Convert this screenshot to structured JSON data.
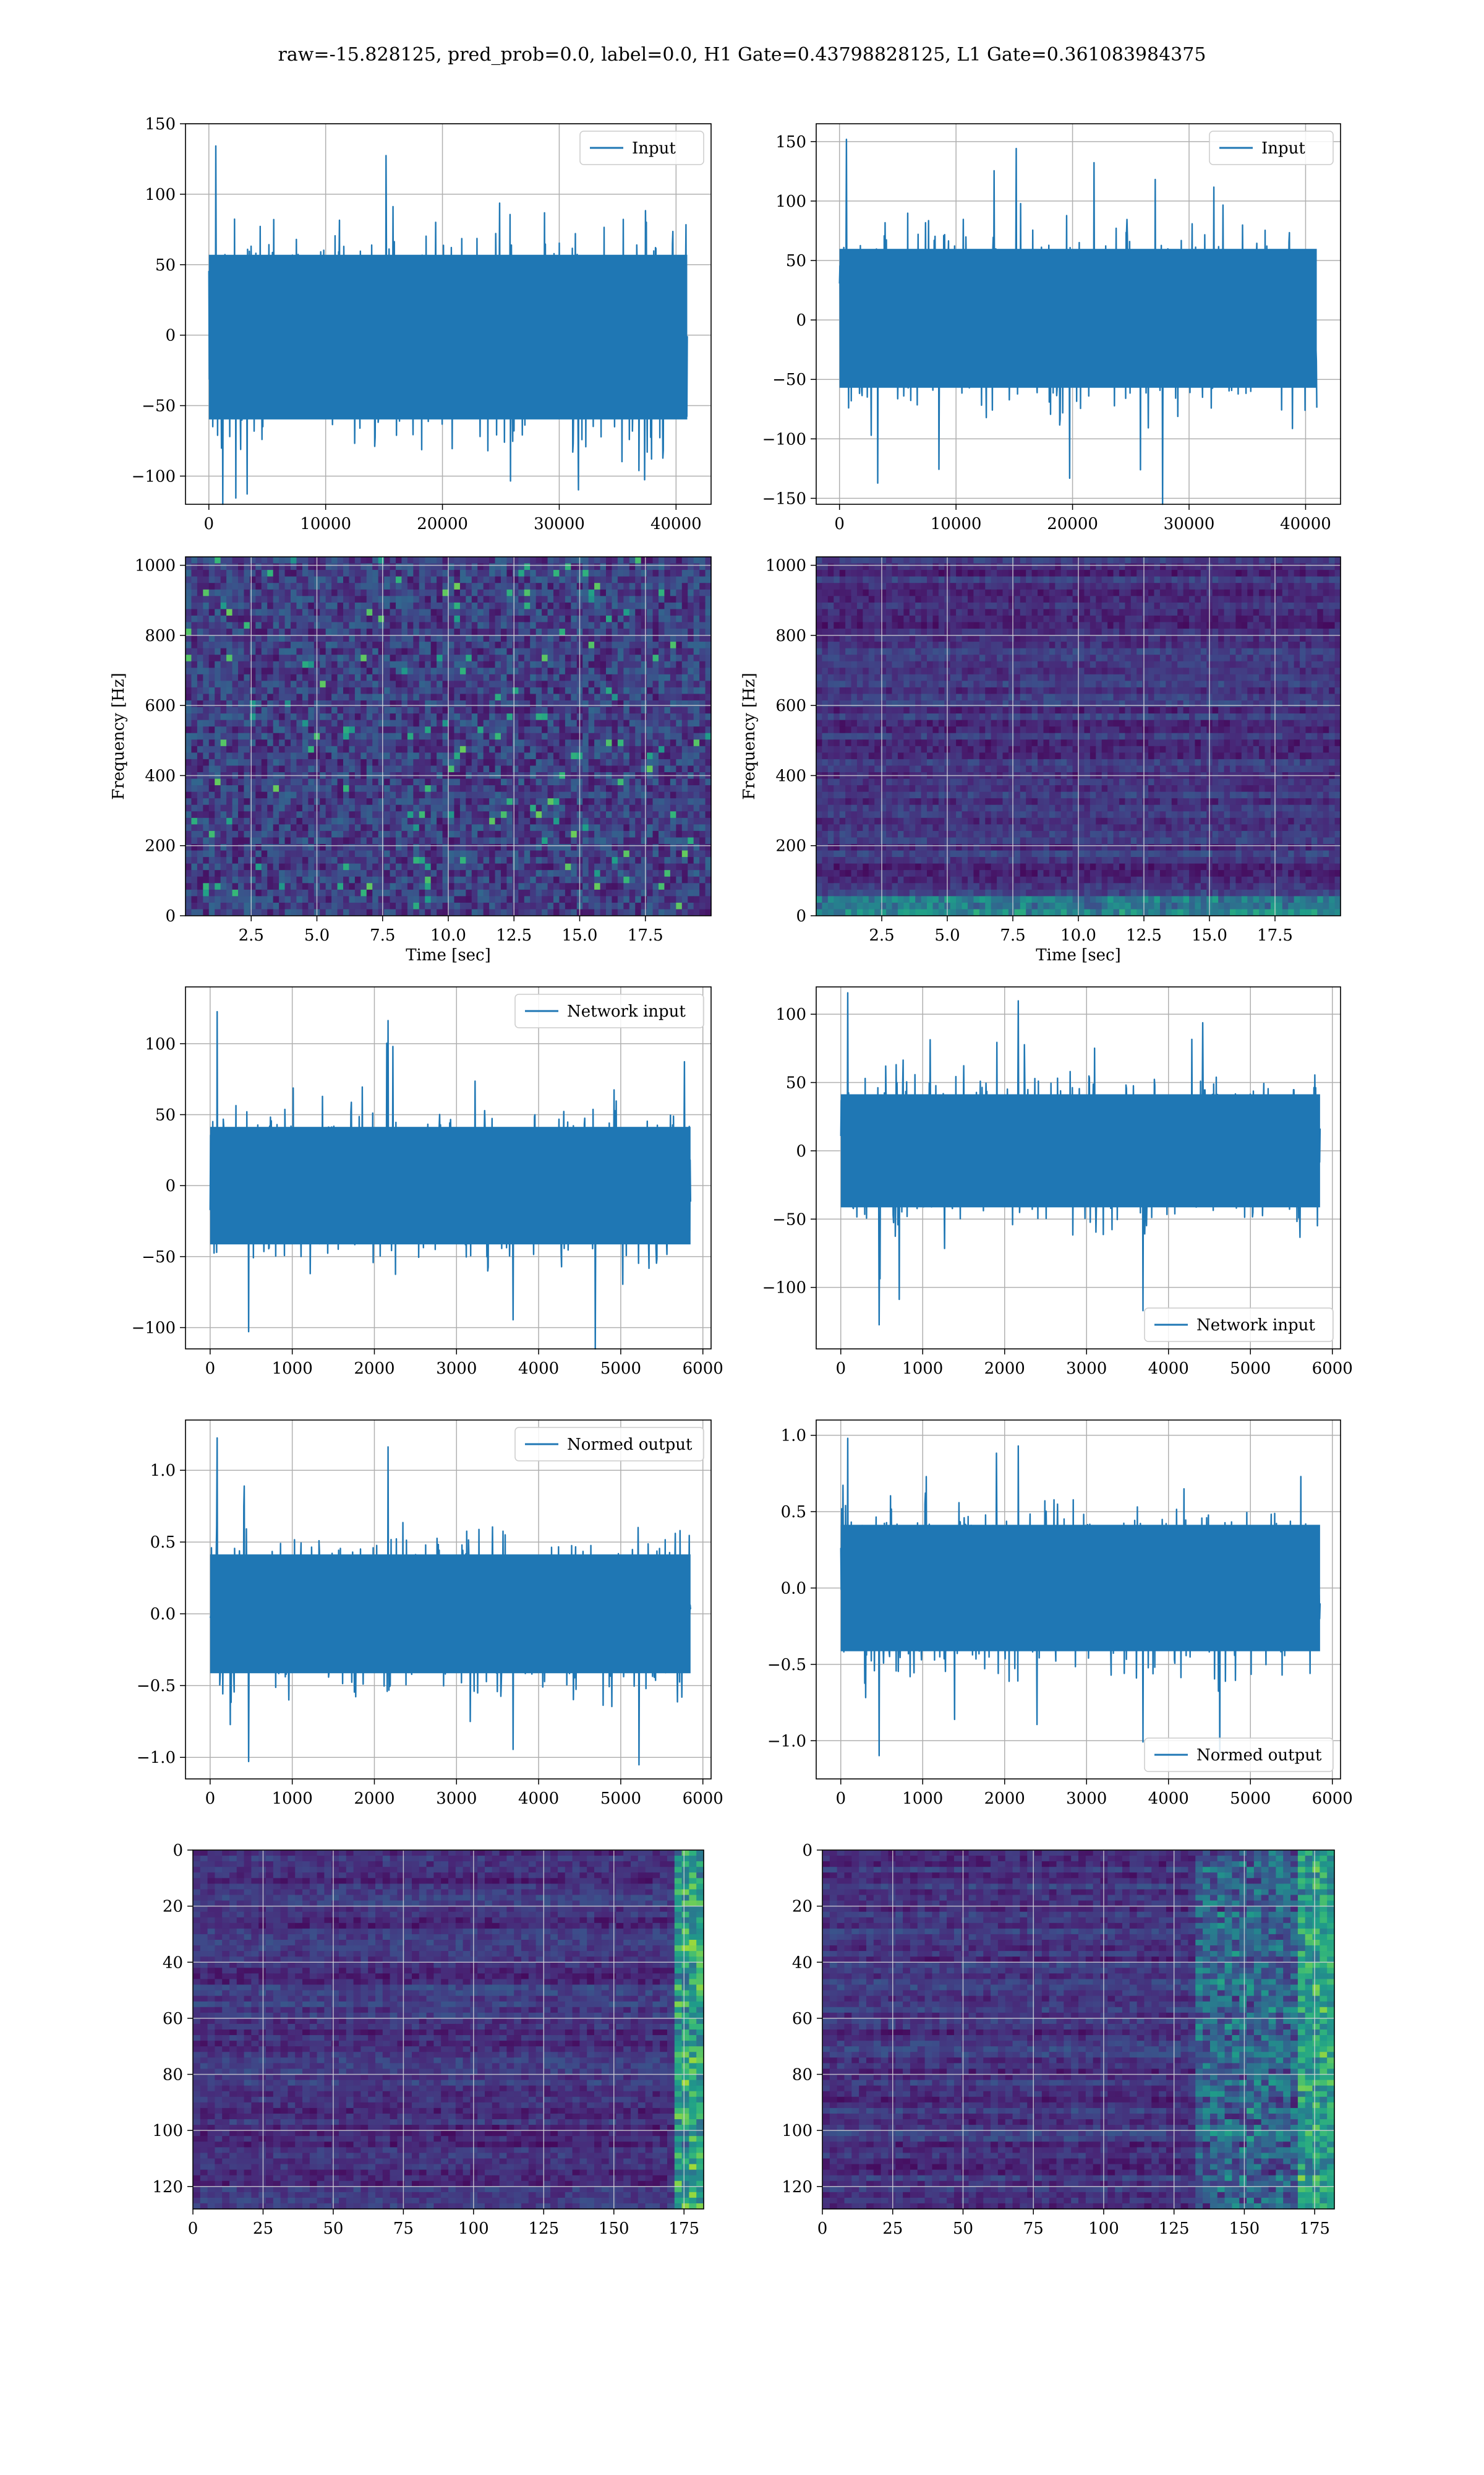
{
  "figure_title": "raw=-15.828125, pred_prob=0.0, label=0.0, H1 Gate=0.43798828125, L1 Gate=0.361083984375",
  "colors": {
    "line": "#1f77b4",
    "grid": "#b0b0b0",
    "viridis": [
      "#440154",
      "#482878",
      "#3e4989",
      "#31688e",
      "#26828e",
      "#1f9e89",
      "#35b779",
      "#6ece58",
      "#b5de2b",
      "#fde725"
    ]
  },
  "chart_data": [
    {
      "id": "row1-left",
      "type": "line",
      "title": "",
      "xlabel": "",
      "ylabel": "",
      "legend": "upper right",
      "grid": true,
      "xlim": [
        -2000,
        43000
      ],
      "ylim": [
        -120,
        150
      ],
      "xticks": [
        0,
        10000,
        20000,
        30000,
        40000
      ],
      "xticklabels": [
        "0",
        "10000",
        "20000",
        "30000",
        "40000"
      ],
      "yticks": [
        -100,
        -50,
        0,
        50,
        100,
        150
      ],
      "yticklabels": [
        "−100",
        "−50",
        "0",
        "50",
        "100",
        "150"
      ],
      "series": [
        {
          "name": "Input",
          "x_range": [
            0,
            40960
          ],
          "band": [
            -65,
            62
          ],
          "peaks": [
            137,
            -115
          ]
        }
      ]
    },
    {
      "id": "row1-right",
      "type": "line",
      "title": "",
      "xlabel": "",
      "ylabel": "",
      "legend": "upper right",
      "grid": true,
      "xlim": [
        -2000,
        43000
      ],
      "ylim": [
        -155,
        165
      ],
      "xticks": [
        0,
        10000,
        20000,
        30000,
        40000
      ],
      "xticklabels": [
        "0",
        "10000",
        "20000",
        "30000",
        "40000"
      ],
      "yticks": [
        -150,
        -100,
        -50,
        0,
        50,
        100,
        150
      ],
      "yticklabels": [
        "−150",
        "−100",
        "−50",
        "0",
        "50",
        "100",
        "150"
      ],
      "series": [
        {
          "name": "Input",
          "x_range": [
            0,
            40960
          ],
          "band": [
            -62,
            65
          ],
          "peaks": [
            155,
            -140
          ]
        }
      ]
    },
    {
      "id": "row2-left",
      "type": "heatmap",
      "title": "",
      "xlabel": "Time [sec]",
      "ylabel": "Frequency [Hz]",
      "grid": true,
      "xlim": [
        0,
        20
      ],
      "ylim": [
        0,
        1024
      ],
      "xticks": [
        2.5,
        5,
        7.5,
        10,
        12.5,
        15,
        17.5
      ],
      "xticklabels": [
        "2.5",
        "5.0",
        "7.5",
        "10.0",
        "12.5",
        "15.0",
        "17.5"
      ],
      "yticks": [
        0,
        200,
        400,
        600,
        800,
        1000
      ],
      "yticklabels": [
        "0",
        "200",
        "400",
        "600",
        "800",
        "1000"
      ],
      "intensity": "moderate",
      "bright_band": "none"
    },
    {
      "id": "row2-right",
      "type": "heatmap",
      "title": "",
      "xlabel": "Time [sec]",
      "ylabel": "Frequency [Hz]",
      "grid": true,
      "xlim": [
        0,
        20
      ],
      "ylim": [
        0,
        1024
      ],
      "xticks": [
        2.5,
        5,
        7.5,
        10,
        12.5,
        15,
        17.5
      ],
      "xticklabels": [
        "2.5",
        "5.0",
        "7.5",
        "10.0",
        "12.5",
        "15.0",
        "17.5"
      ],
      "yticks": [
        0,
        200,
        400,
        600,
        800,
        1000
      ],
      "yticklabels": [
        "0",
        "200",
        "400",
        "600",
        "800",
        "1000"
      ],
      "intensity": "low",
      "bright_band": "low-frequency"
    },
    {
      "id": "row3-left",
      "type": "line",
      "title": "",
      "xlabel": "",
      "ylabel": "",
      "legend": "upper right",
      "grid": true,
      "xlim": [
        -300,
        6100
      ],
      "ylim": [
        -115,
        140
      ],
      "xticks": [
        0,
        1000,
        2000,
        3000,
        4000,
        5000,
        6000
      ],
      "xticklabels": [
        "0",
        "1000",
        "2000",
        "3000",
        "4000",
        "5000",
        "6000"
      ],
      "yticks": [
        -100,
        -50,
        0,
        50,
        100
      ],
      "yticklabels": [
        "−100",
        "−50",
        "0",
        "50",
        "100"
      ],
      "series": [
        {
          "name": "Network input",
          "x_range": [
            0,
            5850
          ],
          "band": [
            -45,
            45
          ],
          "peaks": [
            125,
            -105
          ]
        }
      ]
    },
    {
      "id": "row3-right",
      "type": "line",
      "title": "",
      "xlabel": "",
      "ylabel": "",
      "legend": "lower right",
      "grid": true,
      "xlim": [
        -300,
        6100
      ],
      "ylim": [
        -145,
        120
      ],
      "xticks": [
        0,
        1000,
        2000,
        3000,
        4000,
        5000,
        6000
      ],
      "xticklabels": [
        "0",
        "1000",
        "2000",
        "3000",
        "4000",
        "5000",
        "6000"
      ],
      "yticks": [
        -100,
        -50,
        0,
        50,
        100
      ],
      "yticklabels": [
        "−100",
        "−50",
        "0",
        "50",
        "100"
      ],
      "series": [
        {
          "name": "Network input",
          "x_range": [
            0,
            5850
          ],
          "band": [
            -45,
            45
          ],
          "peaks": [
            118,
            -130
          ]
        }
      ]
    },
    {
      "id": "row4-left",
      "type": "line",
      "title": "",
      "xlabel": "",
      "ylabel": "",
      "legend": "upper right",
      "grid": true,
      "xlim": [
        -300,
        6100
      ],
      "ylim": [
        -1.15,
        1.35
      ],
      "xticks": [
        0,
        1000,
        2000,
        3000,
        4000,
        5000,
        6000
      ],
      "xticklabels": [
        "0",
        "1000",
        "2000",
        "3000",
        "4000",
        "5000",
        "6000"
      ],
      "yticks": [
        -1.0,
        -0.5,
        0.0,
        0.5,
        1.0
      ],
      "yticklabels": [
        "−1.0",
        "−0.5",
        "0.0",
        "0.5",
        "1.0"
      ],
      "series": [
        {
          "name": "Normed output",
          "x_range": [
            0,
            5850
          ],
          "band": [
            -0.45,
            0.45
          ],
          "peaks": [
            1.25,
            -1.05
          ]
        }
      ]
    },
    {
      "id": "row4-right",
      "type": "line",
      "title": "",
      "xlabel": "",
      "ylabel": "",
      "legend": "lower right",
      "grid": true,
      "xlim": [
        -300,
        6100
      ],
      "ylim": [
        -1.25,
        1.1
      ],
      "xticks": [
        0,
        1000,
        2000,
        3000,
        4000,
        5000,
        6000
      ],
      "xticklabels": [
        "0",
        "1000",
        "2000",
        "3000",
        "4000",
        "5000",
        "6000"
      ],
      "yticks": [
        -1.0,
        -0.5,
        0.0,
        0.5,
        1.0
      ],
      "yticklabels": [
        "−1.0",
        "−0.5",
        "0.0",
        "0.5",
        "1.0"
      ],
      "series": [
        {
          "name": "Normed output",
          "x_range": [
            0,
            5850
          ],
          "band": [
            -0.45,
            0.45
          ],
          "peaks": [
            1.0,
            -1.12
          ]
        }
      ]
    },
    {
      "id": "row5-left",
      "type": "heatmap",
      "title": "",
      "xlabel": "",
      "ylabel": "",
      "grid": true,
      "xlim": [
        0,
        182
      ],
      "ylim": [
        128,
        0
      ],
      "xticks": [
        0,
        25,
        50,
        75,
        100,
        125,
        150,
        175
      ],
      "xticklabels": [
        "0",
        "25",
        "50",
        "75",
        "100",
        "125",
        "150",
        "175"
      ],
      "yticks": [
        0,
        20,
        40,
        60,
        80,
        100,
        120
      ],
      "yticklabels": [
        "0",
        "20",
        "40",
        "60",
        "80",
        "100",
        "120"
      ],
      "intensity": "low",
      "bright_band": "right-edge"
    },
    {
      "id": "row5-right",
      "type": "heatmap",
      "title": "",
      "xlabel": "",
      "ylabel": "",
      "grid": true,
      "xlim": [
        0,
        182
      ],
      "ylim": [
        128,
        0
      ],
      "xticks": [
        0,
        25,
        50,
        75,
        100,
        125,
        150,
        175
      ],
      "xticklabels": [
        "0",
        "25",
        "50",
        "75",
        "100",
        "125",
        "150",
        "175"
      ],
      "yticks": [
        0,
        20,
        40,
        60,
        80,
        100,
        120
      ],
      "yticklabels": [
        "0",
        "20",
        "40",
        "60",
        "80",
        "100",
        "120"
      ],
      "intensity": "low",
      "bright_band": "right-region"
    }
  ]
}
